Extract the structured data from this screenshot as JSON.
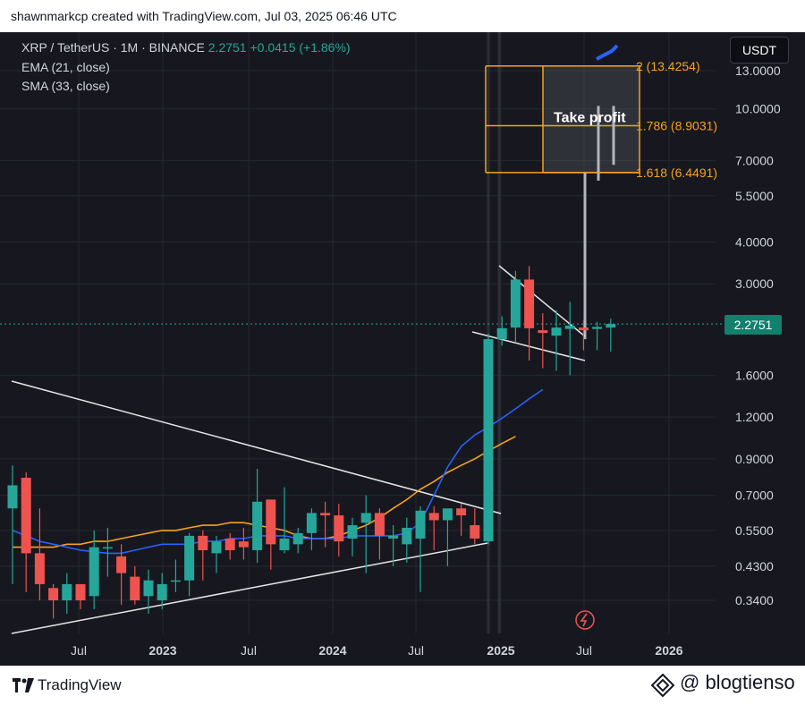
{
  "header": {
    "credit": "shawnmarkcp created with TradingView.com, Jul 03, 2025 06:46 UTC"
  },
  "legend": {
    "symbol": "XRP / TetherUS · 1M · BINANCE",
    "price": "2.2751",
    "change": "+0.0415 (+1.86%)",
    "ema": "EMA (21, close)",
    "sma": "SMA (33, close)"
  },
  "unit_label": "USDT",
  "current_price_label": "2.2751",
  "take_profit_label": "Take profit",
  "fib_levels": [
    {
      "label": "2 (13.4254)",
      "value": 13.4254
    },
    {
      "label": "1.786 (8.9031)",
      "value": 8.9031
    },
    {
      "label": "1.618 (6.4491)",
      "value": 6.4491
    }
  ],
  "colors": {
    "background": "#17181f",
    "up": "#26a69a",
    "down": "#ef5350",
    "ema": "#2962ff",
    "sma": "#f7a21b",
    "fib": "#f7a21b",
    "grid": "#252830",
    "trendline": "#e6e6e6"
  },
  "footer": {
    "tradingview": "TradingView",
    "brand": "@ blogtienso"
  },
  "chart_data": {
    "type": "candlestick",
    "title": "XRP / TetherUS · 1M · BINANCE",
    "y_scale": "log",
    "y_ticks": [
      "13.0000",
      "10.0000",
      "7.0000",
      "5.5000",
      "4.0000",
      "3.0000",
      "1.6000",
      "1.2000",
      "0.9000",
      "0.7000",
      "0.5500",
      "0.4300",
      "0.3400"
    ],
    "x_ticks": [
      "Jul",
      "2023",
      "Jul",
      "2024",
      "Jul",
      "2025",
      "Jul",
      "2026"
    ],
    "candles": [
      {
        "date": "2022-05",
        "o": 0.64,
        "h": 0.86,
        "l": 0.38,
        "c": 0.75
      },
      {
        "date": "2022-06",
        "o": 0.79,
        "h": 0.82,
        "l": 0.36,
        "c": 0.47
      },
      {
        "date": "2022-07",
        "o": 0.47,
        "h": 0.64,
        "l": 0.34,
        "c": 0.38
      },
      {
        "date": "2022-08",
        "o": 0.37,
        "h": 0.38,
        "l": 0.3,
        "c": 0.34
      },
      {
        "date": "2022-09",
        "o": 0.34,
        "h": 0.41,
        "l": 0.31,
        "c": 0.38
      },
      {
        "date": "2022-10",
        "o": 0.38,
        "h": 0.38,
        "l": 0.32,
        "c": 0.34
      },
      {
        "date": "2022-11",
        "o": 0.35,
        "h": 0.55,
        "l": 0.32,
        "c": 0.49
      },
      {
        "date": "2022-12",
        "o": 0.49,
        "h": 0.56,
        "l": 0.4,
        "c": 0.49
      },
      {
        "date": "2022-12b",
        "o": 0.46,
        "h": 0.5,
        "l": 0.33,
        "c": 0.41
      },
      {
        "date": "2023-01",
        "o": 0.4,
        "h": 0.43,
        "l": 0.33,
        "c": 0.34
      },
      {
        "date": "2023-02",
        "o": 0.35,
        "h": 0.42,
        "l": 0.31,
        "c": 0.39
      },
      {
        "date": "2023-03",
        "o": 0.34,
        "h": 0.41,
        "l": 0.32,
        "c": 0.38
      },
      {
        "date": "2023-04",
        "o": 0.39,
        "h": 0.45,
        "l": 0.36,
        "c": 0.39
      },
      {
        "date": "2023-05",
        "o": 0.39,
        "h": 0.54,
        "l": 0.35,
        "c": 0.53
      },
      {
        "date": "2023-06",
        "o": 0.53,
        "h": 0.55,
        "l": 0.39,
        "c": 0.48
      },
      {
        "date": "2023-07",
        "o": 0.47,
        "h": 0.53,
        "l": 0.41,
        "c": 0.51
      },
      {
        "date": "2023-08",
        "o": 0.52,
        "h": 0.54,
        "l": 0.45,
        "c": 0.48
      },
      {
        "date": "2023-09",
        "o": 0.51,
        "h": 0.56,
        "l": 0.45,
        "c": 0.49
      },
      {
        "date": "2023-10",
        "o": 0.48,
        "h": 0.84,
        "l": 0.44,
        "c": 0.67
      },
      {
        "date": "2023-11",
        "o": 0.68,
        "h": 0.68,
        "l": 0.42,
        "c": 0.5
      },
      {
        "date": "2023-12",
        "o": 0.48,
        "h": 0.74,
        "l": 0.47,
        "c": 0.52
      },
      {
        "date": "2024-01",
        "o": 0.5,
        "h": 0.56,
        "l": 0.47,
        "c": 0.54
      },
      {
        "date": "2024-02",
        "o": 0.54,
        "h": 0.64,
        "l": 0.48,
        "c": 0.62
      },
      {
        "date": "2024-03",
        "o": 0.62,
        "h": 0.67,
        "l": 0.49,
        "c": 0.61
      },
      {
        "date": "2024-04",
        "o": 0.61,
        "h": 0.66,
        "l": 0.46,
        "c": 0.51
      },
      {
        "date": "2024-05",
        "o": 0.52,
        "h": 0.6,
        "l": 0.46,
        "c": 0.57
      },
      {
        "date": "2024-06",
        "o": 0.58,
        "h": 0.7,
        "l": 0.41,
        "c": 0.62
      },
      {
        "date": "2024-07",
        "o": 0.62,
        "h": 0.64,
        "l": 0.45,
        "c": 0.53
      },
      {
        "date": "2024-08",
        "o": 0.52,
        "h": 0.57,
        "l": 0.43,
        "c": 0.53
      },
      {
        "date": "2024-09",
        "o": 0.5,
        "h": 0.6,
        "l": 0.44,
        "c": 0.56
      },
      {
        "date": "2024-10",
        "o": 0.52,
        "h": 0.65,
        "l": 0.36,
        "c": 0.63
      },
      {
        "date": "2024-11",
        "o": 0.62,
        "h": 0.65,
        "l": 0.48,
        "c": 0.59
      },
      {
        "date": "2024-12",
        "o": 0.59,
        "h": 0.63,
        "l": 0.43,
        "c": 0.64
      },
      {
        "date": "2025-01",
        "o": 0.64,
        "h": 0.66,
        "l": 0.53,
        "c": 0.61
      },
      {
        "date": "2025-02",
        "o": 0.57,
        "h": 0.64,
        "l": 0.5,
        "c": 0.52
      },
      {
        "date": "2025-03",
        "o": 0.51,
        "h": 2.13,
        "l": 0.5,
        "c": 2.05
      },
      {
        "date": "2025-04",
        "o": 2.05,
        "h": 2.4,
        "l": 1.96,
        "c": 2.21
      },
      {
        "date": "2025-05",
        "o": 2.22,
        "h": 3.28,
        "l": 2.0,
        "c": 3.09
      },
      {
        "date": "2025-06",
        "o": 3.09,
        "h": 3.39,
        "l": 1.77,
        "c": 2.21
      },
      {
        "date": "2025-07",
        "o": 2.18,
        "h": 2.45,
        "l": 1.68,
        "c": 2.14
      },
      {
        "date": "2025-08",
        "o": 2.1,
        "h": 2.5,
        "l": 1.65,
        "c": 2.22
      },
      {
        "date": "2025-09",
        "o": 2.2,
        "h": 2.65,
        "l": 1.6,
        "c": 2.25
      },
      {
        "date": "2025-10",
        "o": 2.22,
        "h": 2.34,
        "l": 1.9,
        "c": 2.18
      },
      {
        "date": "2025-11",
        "o": 2.2,
        "h": 2.31,
        "l": 1.9,
        "c": 2.23
      },
      {
        "date": "2025-12",
        "o": 2.22,
        "h": 2.36,
        "l": 1.88,
        "c": 2.2751
      }
    ],
    "ema_21": [
      0.55,
      0.53,
      0.51,
      0.5,
      0.49,
      0.48,
      0.475,
      0.47,
      0.47,
      0.48,
      0.49,
      0.5,
      0.5,
      0.5,
      0.51,
      0.51,
      0.52,
      0.52,
      0.53,
      0.53,
      0.53,
      0.52,
      0.52,
      0.52,
      0.52,
      0.53,
      0.53,
      0.53,
      0.53,
      0.54,
      0.58,
      0.7,
      0.85,
      0.98,
      1.06,
      1.12,
      1.19,
      1.27,
      1.36,
      1.45
    ],
    "sma_33": [
      0.49,
      0.49,
      0.49,
      0.49,
      0.5,
      0.5,
      0.51,
      0.51,
      0.52,
      0.53,
      0.54,
      0.55,
      0.55,
      0.56,
      0.57,
      0.57,
      0.58,
      0.58,
      0.57,
      0.56,
      0.55,
      0.53,
      0.52,
      0.52,
      0.53,
      0.55,
      0.57,
      0.6,
      0.64,
      0.68,
      0.73,
      0.77,
      0.82,
      0.86,
      0.9,
      0.95,
      1.0,
      1.05
    ]
  }
}
